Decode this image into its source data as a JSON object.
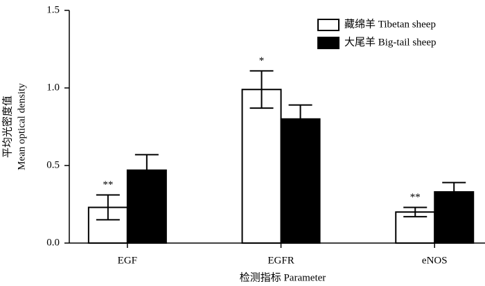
{
  "chart_data": {
    "type": "bar",
    "x_label": "检测指标 Parameter",
    "y_label": [
      "平均光密度值",
      "Mean optical density"
    ],
    "categories": [
      "EGF",
      "EGFR",
      "eNOS"
    ],
    "series": [
      {
        "name": "藏绵羊 Tibetan sheep",
        "color": "#ffffff",
        "values": [
          0.23,
          0.99,
          0.2
        ],
        "errors": [
          0.08,
          0.12,
          0.03
        ],
        "significance": [
          "**",
          "*",
          "**"
        ]
      },
      {
        "name": "大尾羊 Big-tail sheep",
        "color": "#000000",
        "values": [
          0.47,
          0.8,
          0.33
        ],
        "errors": [
          0.1,
          0.09,
          0.06
        ]
      }
    ],
    "ylim": [
      0,
      1.5
    ],
    "yticks": [
      {
        "value": 0,
        "label": "0.0"
      },
      {
        "value": 0.5,
        "label": "0.5"
      },
      {
        "value": 1,
        "label": "1.0"
      },
      {
        "value": 1.5,
        "label": "1.5"
      }
    ],
    "legend": "upper right"
  }
}
